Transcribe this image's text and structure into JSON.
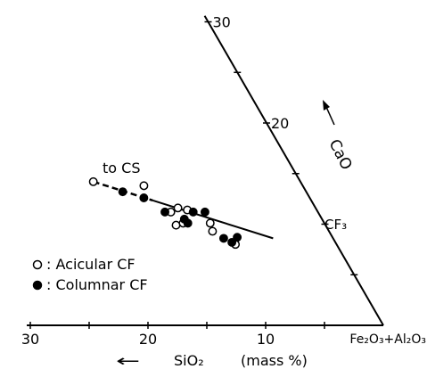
{
  "chart_data": {
    "type": "scatter",
    "subtype": "ternary-section",
    "title": "",
    "axes": {
      "x": {
        "label_arrow": "←",
        "label_name": "SiO₂",
        "label_unit": "(mass %)",
        "direction": "decreasing to the right",
        "ticks": [
          30,
          20,
          10
        ],
        "end_label": "Fe₂O₃+Al₂O₃",
        "range": [
          0,
          30
        ]
      },
      "y": {
        "label": "CaO",
        "ticks": [
          30,
          20
        ],
        "range": [
          0,
          30
        ],
        "orientation": "oblique side of the triangle"
      }
    },
    "annotations": {
      "to_cs": "to CS",
      "cf3": "CF₃"
    },
    "legend": {
      "position": "lower-left",
      "items": [
        {
          "marker": "open-circle",
          "symbol": "○",
          "label": ": Acicular CF"
        },
        {
          "marker": "filled-circle",
          "symbol": "●",
          "label": ": Columnar CF"
        }
      ]
    },
    "tie_line": {
      "from": {
        "SiO2": 17.6,
        "CaO": 14.2
      },
      "to": {
        "SiO2": 5.1,
        "CaO": 8.6
      }
    },
    "series": [
      {
        "name": "Acicular CF",
        "marker": "open",
        "points": [
          {
            "SiO2": 17.6,
            "CaO": 14.2
          },
          {
            "SiO2": 13.5,
            "CaO": 13.8
          },
          {
            "SiO2": 11.7,
            "CaO": 11.6
          },
          {
            "SiO2": 12.5,
            "CaO": 11.2
          },
          {
            "SiO2": 11.0,
            "CaO": 11.4
          },
          {
            "SiO2": 12.7,
            "CaO": 9.9
          },
          {
            "SiO2": 12.0,
            "CaO": 10.1
          },
          {
            "SiO2": 9.7,
            "CaO": 10.1
          },
          {
            "SiO2": 9.9,
            "CaO": 9.3
          },
          {
            "SiO2": 8.6,
            "CaO": 8.0
          }
        ]
      },
      {
        "name": "Columnar CF",
        "marker": "filled",
        "points": [
          {
            "SiO2": 15.6,
            "CaO": 13.2
          },
          {
            "SiO2": 14.1,
            "CaO": 12.6
          },
          {
            "SiO2": 13.0,
            "CaO": 11.2
          },
          {
            "SiO2": 11.7,
            "CaO": 10.5
          },
          {
            "SiO2": 10.6,
            "CaO": 11.2
          },
          {
            "SiO2": 9.6,
            "CaO": 11.2
          },
          {
            "SiO2": 11.6,
            "CaO": 10.1
          },
          {
            "SiO2": 9.3,
            "CaO": 8.6
          },
          {
            "SiO2": 8.8,
            "CaO": 8.2
          },
          {
            "SiO2": 8.1,
            "CaO": 8.7
          }
        ]
      }
    ]
  }
}
